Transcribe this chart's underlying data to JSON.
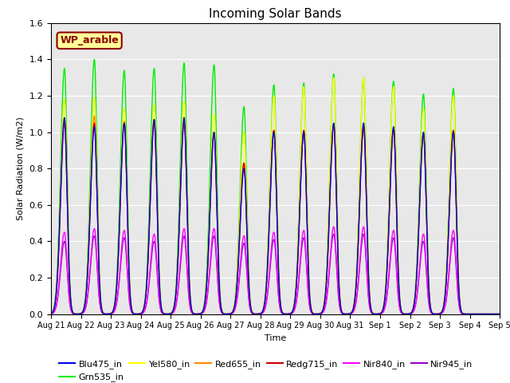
{
  "title": "Incoming Solar Bands",
  "xlabel": "Time",
  "ylabel": "Solar Radiation (W/m2)",
  "ylim": [
    0.0,
    1.6
  ],
  "n_days": 15,
  "background_color": "#e8e8e8",
  "site_label": "WP_arable",
  "site_label_bg": "#ffff99",
  "site_label_border": "#8b0000",
  "legend": [
    {
      "label": "Blu475_in",
      "color": "#0000ee"
    },
    {
      "label": "Grn535_in",
      "color": "#00ee00"
    },
    {
      "label": "Yel580_in",
      "color": "#ffff00"
    },
    {
      "label": "Red655_in",
      "color": "#ff8800"
    },
    {
      "label": "Redg715_in",
      "color": "#cc0000"
    },
    {
      "label": "Nir840_in",
      "color": "#ff00ff"
    },
    {
      "label": "Nir945_in",
      "color": "#9900cc"
    }
  ],
  "peaks": [
    {
      "day": 0.45,
      "blu": 1.08,
      "grn": 1.35,
      "yel": 1.18,
      "red": 1.06,
      "redg": 1.05,
      "nir840": 0.45,
      "nir945": 0.4
    },
    {
      "day": 1.45,
      "blu": 1.03,
      "grn": 1.4,
      "yel": 1.19,
      "red": 1.09,
      "redg": 1.05,
      "nir840": 0.47,
      "nir945": 0.43
    },
    {
      "day": 2.45,
      "blu": 1.05,
      "grn": 1.34,
      "yel": 1.13,
      "red": 1.06,
      "redg": 1.05,
      "nir840": 0.46,
      "nir945": 0.42
    },
    {
      "day": 3.45,
      "blu": 1.07,
      "grn": 1.35,
      "yel": 1.15,
      "red": 1.07,
      "redg": 1.05,
      "nir840": 0.44,
      "nir945": 0.4
    },
    {
      "day": 4.45,
      "blu": 1.08,
      "grn": 1.38,
      "yel": 1.17,
      "red": 1.06,
      "redg": 1.05,
      "nir840": 0.47,
      "nir945": 0.43
    },
    {
      "day": 5.45,
      "blu": 1.0,
      "grn": 1.37,
      "yel": 1.1,
      "red": 1.0,
      "redg": 0.99,
      "nir840": 0.47,
      "nir945": 0.43
    },
    {
      "day": 6.45,
      "blu": 0.8,
      "grn": 1.14,
      "yel": 1.0,
      "red": 0.83,
      "redg": 0.83,
      "nir840": 0.43,
      "nir945": 0.39
    },
    {
      "day": 7.45,
      "blu": 1.0,
      "grn": 1.26,
      "yel": 1.2,
      "red": 1.01,
      "redg": 1.01,
      "nir840": 0.45,
      "nir945": 0.41
    },
    {
      "day": 8.45,
      "blu": 1.0,
      "grn": 1.27,
      "yel": 1.25,
      "red": 1.01,
      "redg": 1.01,
      "nir840": 0.46,
      "nir945": 0.42
    },
    {
      "day": 9.45,
      "blu": 1.05,
      "grn": 1.32,
      "yel": 1.3,
      "red": 1.04,
      "redg": 1.04,
      "nir840": 0.48,
      "nir945": 0.44
    },
    {
      "day": 10.45,
      "blu": 1.05,
      "grn": 1.3,
      "yel": 1.3,
      "red": 1.03,
      "redg": 1.03,
      "nir840": 0.48,
      "nir945": 0.44
    },
    {
      "day": 11.45,
      "blu": 1.03,
      "grn": 1.28,
      "yel": 1.25,
      "red": 1.02,
      "redg": 1.02,
      "nir840": 0.46,
      "nir945": 0.42
    },
    {
      "day": 12.45,
      "blu": 1.0,
      "grn": 1.21,
      "yel": 1.13,
      "red": 0.99,
      "redg": 0.99,
      "nir840": 0.44,
      "nir945": 0.4
    },
    {
      "day": 13.45,
      "blu": 1.0,
      "grn": 1.24,
      "yel": 1.2,
      "red": 1.01,
      "redg": 1.01,
      "nir840": 0.46,
      "nir945": 0.42
    }
  ],
  "xtick_labels": [
    "Aug 21",
    "Aug 22",
    "Aug 23",
    "Aug 24",
    "Aug 25",
    "Aug 26",
    "Aug 27",
    "Aug 28",
    "Aug 29",
    "Aug 30",
    "Aug 31",
    "Sep 1",
    "Sep 2",
    "Sep 3",
    "Sep 4",
    "Sep 5"
  ],
  "xtick_positions": [
    0,
    1,
    2,
    3,
    4,
    5,
    6,
    7,
    8,
    9,
    10,
    11,
    12,
    13,
    14,
    15
  ]
}
